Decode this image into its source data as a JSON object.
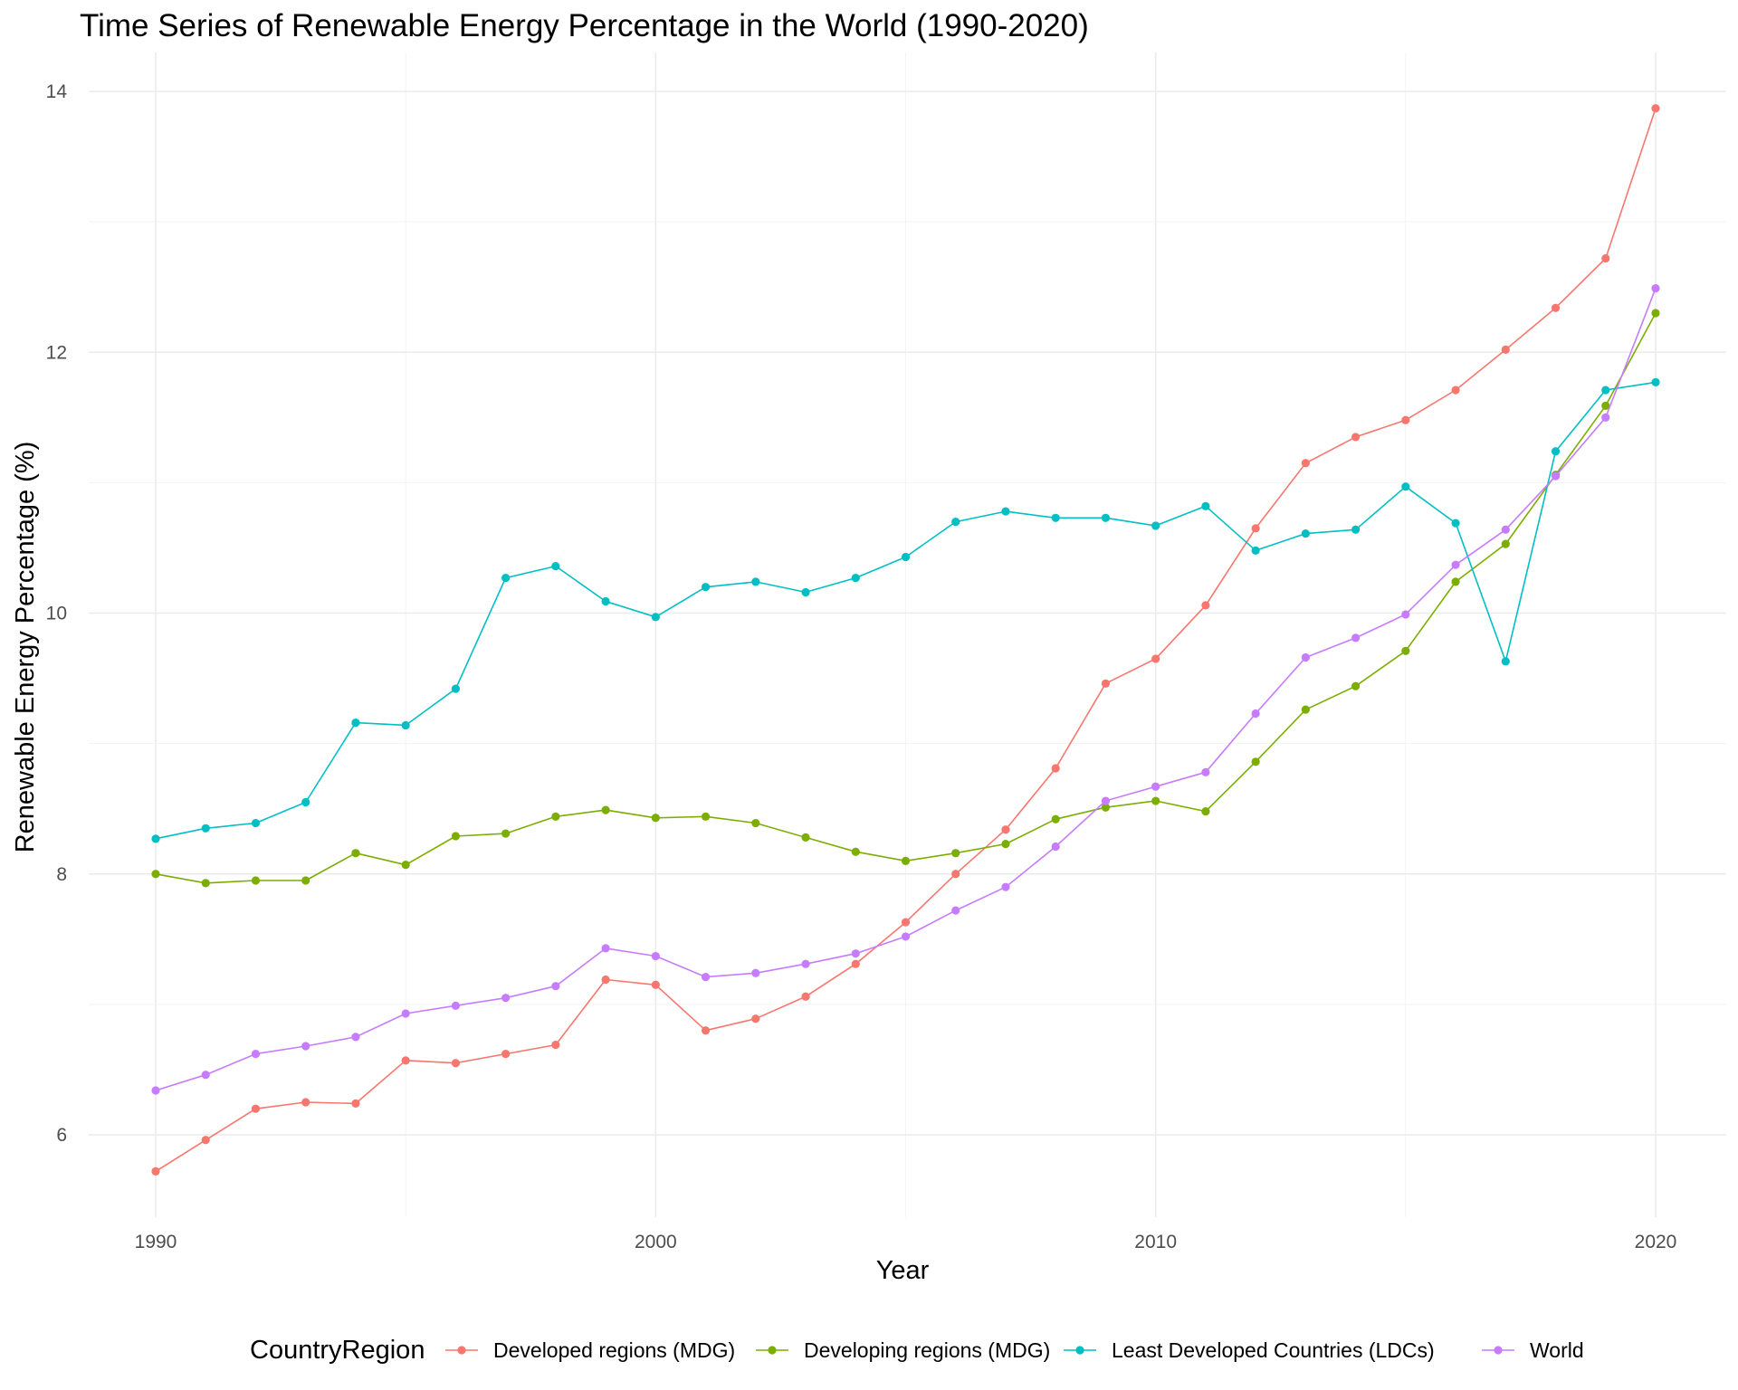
{
  "chart_data": {
    "type": "line",
    "title": "Time Series of Renewable Energy Percentage in the World (1990-2020)",
    "xlabel": "Year",
    "ylabel": "Renewable Energy Percentage (%)",
    "xlim": [
      1990,
      2020
    ],
    "ylim": [
      5.4,
      14.3
    ],
    "x_ticks": [
      1990,
      2000,
      2010,
      2020
    ],
    "y_ticks": [
      6,
      8,
      10,
      12,
      14
    ],
    "grid": true,
    "legend": {
      "title": "CountryRegion",
      "position": "bottom"
    },
    "x": [
      1990,
      1991,
      1992,
      1993,
      1994,
      1995,
      1996,
      1997,
      1998,
      1999,
      2000,
      2001,
      2002,
      2003,
      2004,
      2005,
      2006,
      2007,
      2008,
      2009,
      2010,
      2011,
      2012,
      2013,
      2014,
      2015,
      2016,
      2017,
      2018,
      2019,
      2020
    ],
    "series": [
      {
        "name": "Developed regions (MDG)",
        "color": "#F8766D",
        "values": [
          5.72,
          5.96,
          6.2,
          6.25,
          6.24,
          6.57,
          6.55,
          6.62,
          6.69,
          7.19,
          7.15,
          6.8,
          6.89,
          7.06,
          7.31,
          7.63,
          8.0,
          8.34,
          8.81,
          9.46,
          9.65,
          10.06,
          10.65,
          11.15,
          11.35,
          11.48,
          11.71,
          12.02,
          12.34,
          12.72,
          13.87
        ]
      },
      {
        "name": "Developing regions (MDG)",
        "color": "#7CAE00",
        "values": [
          8.0,
          7.93,
          7.95,
          7.95,
          8.16,
          8.07,
          8.29,
          8.31,
          8.44,
          8.49,
          8.43,
          8.44,
          8.39,
          8.28,
          8.17,
          8.1,
          8.16,
          8.23,
          8.42,
          8.51,
          8.56,
          8.48,
          8.86,
          9.26,
          9.44,
          9.71,
          10.24,
          10.53,
          11.06,
          11.59,
          12.3
        ]
      },
      {
        "name": "Least Developed Countries (LDCs)",
        "color": "#00BFC4",
        "values": [
          8.27,
          8.35,
          8.39,
          8.55,
          9.16,
          9.14,
          9.42,
          10.27,
          10.36,
          10.09,
          9.97,
          10.2,
          10.24,
          10.16,
          10.27,
          10.43,
          10.7,
          10.78,
          10.73,
          10.73,
          10.67,
          10.82,
          10.48,
          10.61,
          10.64,
          10.97,
          10.69,
          9.63,
          11.24,
          11.71,
          11.77
        ]
      },
      {
        "name": "World",
        "color": "#C77CFF",
        "values": [
          6.34,
          6.46,
          6.62,
          6.68,
          6.75,
          6.93,
          6.99,
          7.05,
          7.14,
          7.43,
          7.37,
          7.21,
          7.24,
          7.31,
          7.39,
          7.52,
          7.72,
          7.9,
          8.21,
          8.56,
          8.67,
          8.78,
          9.23,
          9.66,
          9.81,
          9.99,
          10.37,
          10.64,
          11.05,
          11.5,
          12.49
        ]
      }
    ]
  }
}
